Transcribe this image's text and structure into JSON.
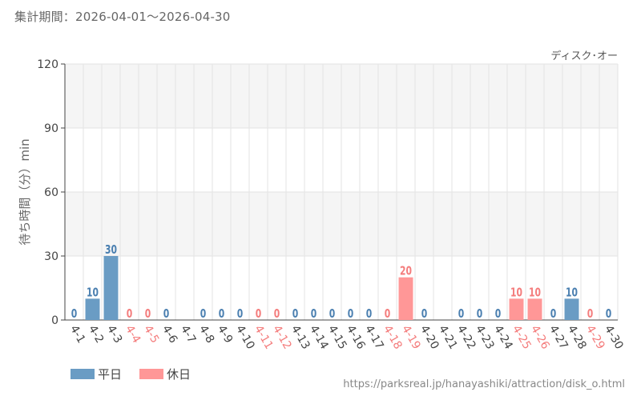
{
  "header": {
    "period_label": "集計期間：2026-04-01～2026-04-30"
  },
  "chart_data": {
    "type": "bar",
    "series_label": "ディスク･オー",
    "ylabel": "待ち時間（分）min",
    "ylim": [
      0,
      120
    ],
    "yticks": [
      0,
      30,
      60,
      90,
      120
    ],
    "categories": [
      "4-1",
      "4-2",
      "4-3",
      "4-4",
      "4-5",
      "4-6",
      "4-7",
      "4-8",
      "4-9",
      "4-10",
      "4-11",
      "4-12",
      "4-13",
      "4-14",
      "4-15",
      "4-16",
      "4-17",
      "4-18",
      "4-19",
      "4-20",
      "4-21",
      "4-22",
      "4-23",
      "4-24",
      "4-25",
      "4-26",
      "4-27",
      "4-28",
      "4-29",
      "4-30"
    ],
    "values": [
      0,
      10,
      30,
      0,
      0,
      0,
      null,
      0,
      0,
      0,
      0,
      0,
      0,
      0,
      0,
      0,
      0,
      0,
      20,
      0,
      null,
      0,
      0,
      0,
      10,
      10,
      0,
      10,
      0,
      0
    ],
    "day_type": [
      "weekday",
      "weekday",
      "weekday",
      "holiday",
      "holiday",
      "weekday",
      "weekday",
      "weekday",
      "weekday",
      "weekday",
      "holiday",
      "holiday",
      "weekday",
      "weekday",
      "weekday",
      "weekday",
      "weekday",
      "holiday",
      "holiday",
      "weekday",
      "weekday",
      "weekday",
      "weekday",
      "weekday",
      "holiday",
      "holiday",
      "weekday",
      "weekday",
      "holiday",
      "weekday"
    ],
    "colors": {
      "weekday": "#6a9cc4",
      "holiday": "#ff9797",
      "weekday_text": "#4a7fb0",
      "holiday_text": "#f47c7c"
    },
    "grid": true,
    "legend": {
      "position": "bottom-left",
      "items": [
        {
          "label": "平日",
          "type": "weekday"
        },
        {
          "label": "休日",
          "type": "holiday"
        }
      ]
    }
  },
  "footer": {
    "source_url": "https://parksreal.jp/hanayashiki/attraction/disk_o.html"
  }
}
